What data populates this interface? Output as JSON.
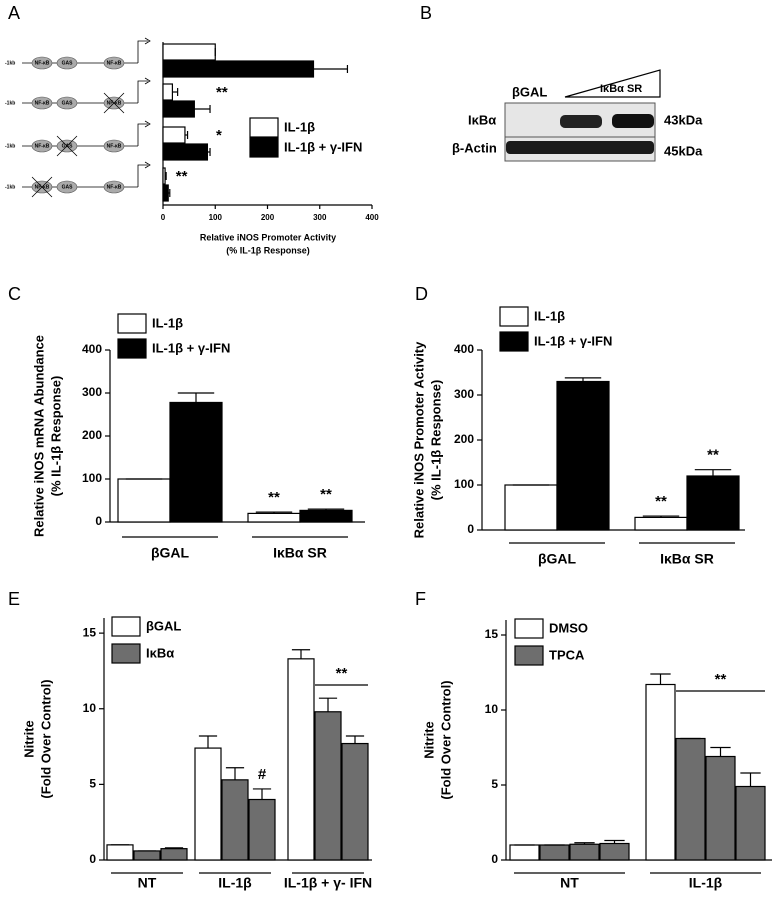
{
  "chart_data": [
    {
      "type": "hbar",
      "panel": "A",
      "constructs": [
        [
          "-1kb",
          "NF-κB",
          "GAS",
          "NF-κB"
        ],
        [
          "-1kb",
          "NF-κB",
          "GAS",
          "NF-κB"
        ],
        [
          "-1kb",
          "NF-κB",
          "GAS",
          "NF-κB"
        ],
        [
          "-1kb",
          "NF-κB",
          "GAS",
          "NF-κB"
        ]
      ],
      "series": [
        {
          "name": "IL-1β",
          "color": "#ffffff",
          "values": [
            100,
            18,
            42,
            4
          ],
          "errors": [
            0,
            10,
            5,
            2
          ]
        },
        {
          "name": "IL-1β + γ-IFN",
          "color": "#000000",
          "values": [
            288,
            60,
            85,
            10
          ],
          "errors": [
            65,
            30,
            5,
            3
          ]
        }
      ],
      "xlim": [
        0,
        400
      ],
      "xticks": [
        0,
        100,
        200,
        300,
        400
      ],
      "x_label": [
        "Relative iNOS Promoter Activity",
        "(% IL-1β Response)"
      ],
      "annotations": [
        {
          "text": "**",
          "index": 1
        },
        {
          "text": "*",
          "index": 2
        },
        {
          "text": "**",
          "index": 3
        }
      ]
    },
    {
      "type": "bar",
      "panel": "C",
      "categories": [
        "βGAL",
        "IκBα SR"
      ],
      "series": [
        {
          "name": "IL-1β",
          "color": "#ffffff",
          "values": [
            100,
            20
          ],
          "errors": [
            0,
            3
          ]
        },
        {
          "name": "IL-1β + γ-IFN",
          "color": "#000000",
          "values": [
            278,
            27
          ],
          "errors": [
            22,
            3
          ]
        }
      ],
      "ylim": [
        0,
        400
      ],
      "yticks": [
        0,
        100,
        200,
        300,
        400
      ],
      "y_label": [
        "Relative iNOS mRNA Abundance",
        "(% IL-1β Response)"
      ],
      "annotations": [
        {
          "text": "**",
          "series": 0,
          "index": 1
        },
        {
          "text": "**",
          "series": 1,
          "index": 1
        }
      ]
    },
    {
      "type": "bar",
      "panel": "D",
      "categories": [
        "βGAL",
        "IκBα SR"
      ],
      "series": [
        {
          "name": "IL-1β",
          "color": "#ffffff",
          "values": [
            100,
            28
          ],
          "errors": [
            0,
            3
          ]
        },
        {
          "name": "IL-1β + γ-IFN",
          "color": "#000000",
          "values": [
            330,
            120
          ],
          "errors": [
            8,
            14
          ]
        }
      ],
      "ylim": [
        0,
        400
      ],
      "yticks": [
        0,
        100,
        200,
        300,
        400
      ],
      "y_label": [
        "Relative iNOS Promoter Activity",
        "(% IL-1β Response)"
      ],
      "annotations": [
        {
          "text": "**",
          "series": 0,
          "index": 1
        },
        {
          "text": "**",
          "series": 1,
          "index": 1
        }
      ]
    },
    {
      "type": "bar",
      "panel": "E",
      "categories": [
        "NT",
        "IL-1β",
        "IL-1β + γ- IFN"
      ],
      "series": [
        {
          "name": "βGAL",
          "color": "#ffffff",
          "values": [
            1.0,
            7.4,
            13.3
          ],
          "errors": [
            0,
            0.8,
            0.6
          ]
        },
        {
          "name": "IκBα",
          "color": "#6e6e6e",
          "values": [
            0.6,
            5.3,
            9.8
          ],
          "errors": [
            0,
            0.8,
            0.9
          ]
        },
        {
          "color": "#6e6e6e",
          "values": [
            0.75,
            4.0,
            7.7
          ],
          "errors": [
            0.05,
            0.7,
            0.5
          ]
        }
      ],
      "ylim": [
        0,
        16
      ],
      "yticks": [
        0,
        5,
        10,
        15
      ],
      "y_label": [
        "Nitrite",
        "(Fold Over Control)"
      ],
      "annotations": [
        {
          "text": "#",
          "series": 2,
          "index": 1
        },
        {
          "text": "**",
          "index": 2,
          "bracket": true
        }
      ]
    },
    {
      "type": "bar",
      "panel": "F",
      "categories": [
        "NT",
        "IL-1β"
      ],
      "series": [
        {
          "name": "DMSO",
          "color": "#ffffff",
          "values": [
            1.0,
            11.7
          ],
          "errors": [
            0,
            0.7
          ]
        },
        {
          "name": "TPCA",
          "color": "#6e6e6e",
          "values": [
            1.0,
            8.1
          ],
          "errors": [
            0,
            0
          ]
        },
        {
          "color": "#6e6e6e",
          "values": [
            1.05,
            6.9
          ],
          "errors": [
            0.1,
            0.6
          ]
        },
        {
          "color": "#6e6e6e",
          "values": [
            1.1,
            4.9
          ],
          "errors": [
            0.2,
            0.9
          ]
        }
      ],
      "ylim": [
        0,
        16
      ],
      "yticks": [
        0,
        5,
        10,
        15
      ],
      "y_label": [
        "Nitrite",
        "(Fold Over Control)"
      ],
      "annotations": [
        {
          "text": "**",
          "index": 1,
          "bracket": true
        }
      ]
    }
  ],
  "blot": {
    "panel": "B",
    "lanes": [
      "βGAL",
      "IκBα SR"
    ],
    "rows": [
      {
        "label": "IκBα",
        "size": "43kDa"
      },
      {
        "label": "β-Actin",
        "size": "45kDa"
      }
    ]
  }
}
